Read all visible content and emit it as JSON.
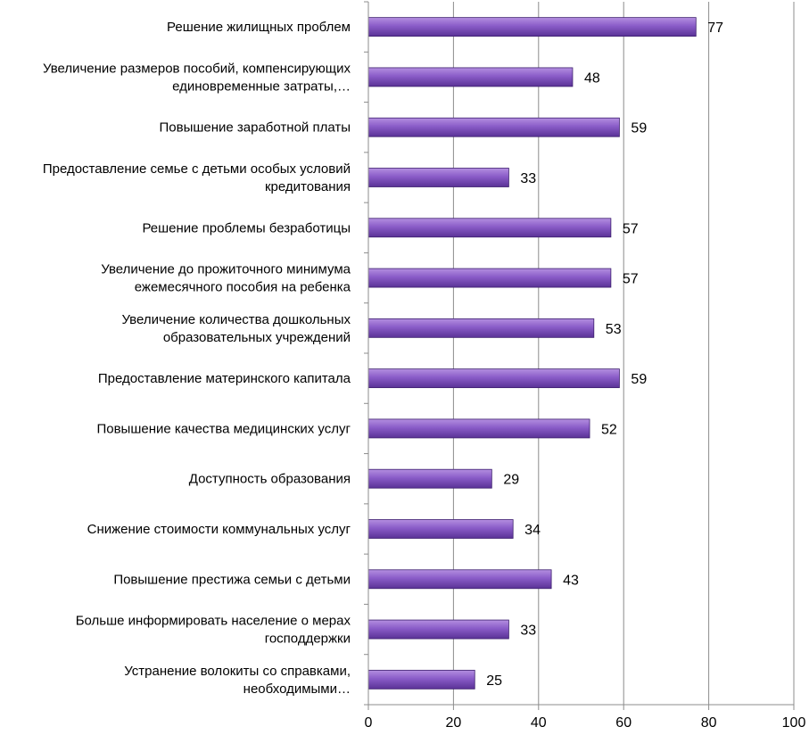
{
  "chart_data": {
    "type": "bar",
    "orientation": "horizontal",
    "categories": [
      [
        "Решение жилищных проблем"
      ],
      [
        "Увеличение размеров пособий, компенсирующих",
        "единовременные затраты,…"
      ],
      [
        "Повышение заработной платы"
      ],
      [
        "Предоставление семье с детьми особых условий",
        "кредитования"
      ],
      [
        "Решение проблемы безработицы"
      ],
      [
        "Увеличение до прожиточного минимума",
        "ежемесячного пособия на ребенка"
      ],
      [
        "Увеличение количества дошкольных",
        "образовательных учреждений"
      ],
      [
        "Предоставление материнского капитала"
      ],
      [
        "Повышение качества медицинских услуг"
      ],
      [
        "Доступность образования"
      ],
      [
        "Снижение стоимости коммунальных услуг"
      ],
      [
        "Повышение престижа семьи с детьми"
      ],
      [
        "Больше информировать население о мерах",
        "господдержки"
      ],
      [
        "Устранение волокиты со справками,",
        "необходимыми…"
      ]
    ],
    "values": [
      77,
      48,
      59,
      33,
      57,
      57,
      53,
      59,
      52,
      29,
      34,
      43,
      33,
      25
    ],
    "xlim": [
      0,
      100
    ],
    "xticks": [
      0,
      20,
      40,
      60,
      80,
      100
    ],
    "grid": "vertical",
    "legend": "none",
    "colors": {
      "bar_light": "#b48fe0",
      "bar_mid": "#8a5cc8",
      "bar_dark": "#5a3296",
      "bar_edge": "#3d1f6e",
      "grid": "#8c8c8c",
      "axis": "#8c8c8c"
    }
  }
}
